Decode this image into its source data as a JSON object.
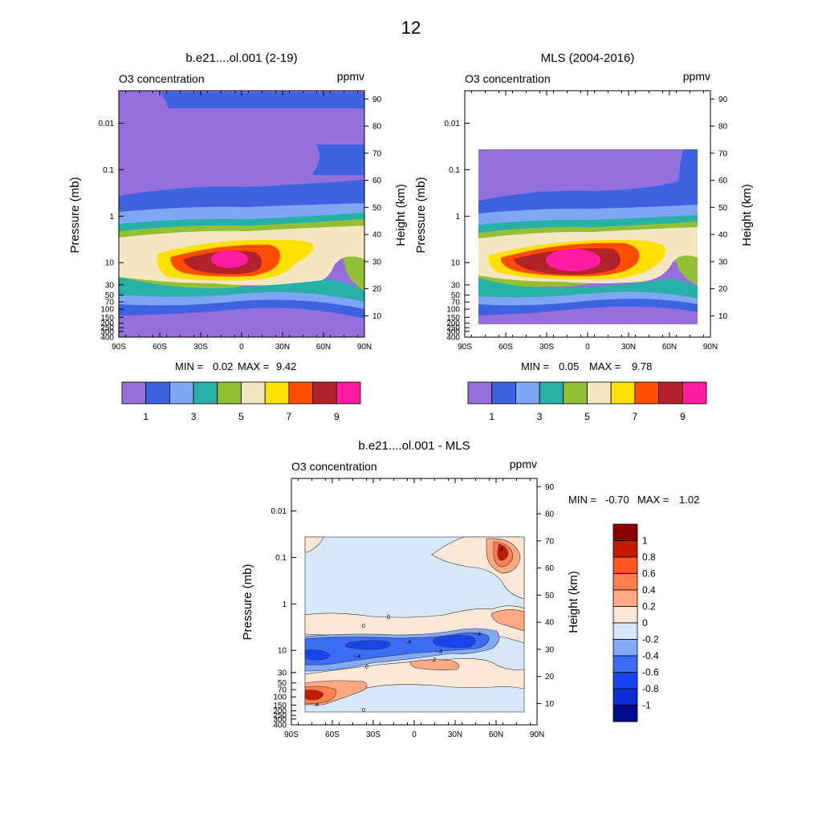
{
  "page_title": "12",
  "chart_data": [
    {
      "type": "heatmap",
      "title": "b.e21....ol.001 (2-19)",
      "left_label": "O3 concentration",
      "right_label": "ppmv",
      "xlabel": "",
      "ylabel": "Pressure (mb)",
      "ylabel_right": "Height (km)",
      "x_ticks": [
        "90S",
        "60S",
        "30S",
        "0",
        "30N",
        "60N",
        "90N"
      ],
      "y_ticks": [
        "0.01",
        "0.1",
        "1",
        "10",
        "30",
        "50",
        "70",
        "100",
        "150",
        "200",
        "250",
        "300",
        "400"
      ],
      "height_ticks": [
        "10",
        "20",
        "30",
        "40",
        "50",
        "60",
        "70",
        "80",
        "90"
      ],
      "xlim": [
        -90,
        90
      ],
      "ylim_pressure_mb": [
        400,
        0.002
      ],
      "stats": {
        "min_label": "MIN =",
        "min": "0.02",
        "max_label": "MAX =",
        "max": "9.42"
      },
      "colorbar": {
        "levels": [
          "1",
          "3",
          "5",
          "7",
          "9"
        ],
        "colors": [
          "#9370db",
          "#3d63e0",
          "#7ea6f5",
          "#27b0a6",
          "#92bf36",
          "#f5e6c2",
          "#ffe000",
          "#ff4d00",
          "#b2222a",
          "#ff1ca0"
        ]
      },
      "peak": {
        "lat": -10,
        "pressure_mb": 10,
        "value": 9.42
      }
    },
    {
      "type": "heatmap",
      "title": "MLS (2004-2016)",
      "left_label": "O3 concentration",
      "right_label": "ppmv",
      "xlabel": "",
      "ylabel": "Pressure (mb)",
      "ylabel_right": "Height (km)",
      "x_ticks": [
        "90S",
        "60S",
        "30S",
        "0",
        "30N",
        "60N",
        "90N"
      ],
      "y_ticks": [
        "0.01",
        "0.1",
        "1",
        "10",
        "30",
        "50",
        "70",
        "100",
        "150",
        "200",
        "250",
        "300",
        "400"
      ],
      "height_ticks": [
        "10",
        "20",
        "30",
        "40",
        "50",
        "60",
        "70",
        "80",
        "90"
      ],
      "xlim": [
        -90,
        90
      ],
      "data_extent": {
        "lat": [
          -82,
          82
        ],
        "pressure_mb": [
          261,
          0.046
        ]
      },
      "stats": {
        "min_label": "MIN =",
        "min": "0.05",
        "max_label": "MAX =",
        "max": "9.78"
      },
      "colorbar": {
        "levels": [
          "1",
          "3",
          "5",
          "7",
          "9"
        ],
        "colors": [
          "#9370db",
          "#3d63e0",
          "#7ea6f5",
          "#27b0a6",
          "#92bf36",
          "#f5e6c2",
          "#ffe000",
          "#ff4d00",
          "#b2222a",
          "#ff1ca0"
        ]
      },
      "peak": {
        "lat": -10,
        "pressure_mb": 10,
        "value": 9.78
      }
    },
    {
      "type": "heatmap",
      "title": "b.e21....ol.001 - MLS",
      "left_label": "O3 concentration",
      "right_label": "ppmv",
      "xlabel": "",
      "ylabel": "Pressure (mb)",
      "ylabel_right": "Height (km)",
      "x_ticks": [
        "90S",
        "60S",
        "30S",
        "0",
        "30N",
        "60N",
        "90N"
      ],
      "y_ticks": [
        "0.01",
        "0.1",
        "1",
        "10",
        "30",
        "50",
        "70",
        "100",
        "150",
        "200",
        "250",
        "300",
        "400"
      ],
      "height_ticks": [
        "10",
        "20",
        "30",
        "40",
        "50",
        "60",
        "70",
        "80",
        "90"
      ],
      "xlim": [
        -90,
        90
      ],
      "data_extent": {
        "lat": [
          -82,
          82
        ],
        "pressure_mb": [
          261,
          0.046
        ]
      },
      "stats": {
        "min_label": "MIN =",
        "min": "-0.70",
        "max_label": "MAX =",
        "max": "1.02"
      },
      "colorbar": {
        "levels": [
          "1",
          "0.8",
          "0.6",
          "0.4",
          "0.2",
          "0",
          "-0.2",
          "-0.4",
          "-0.6",
          "-0.8",
          "-1"
        ],
        "colors": [
          "#8b0000",
          "#c41a00",
          "#ff5522",
          "#ff7f50",
          "#ffa982",
          "#fde8d8",
          "#d6e8f8",
          "#82aaf8",
          "#3d6cf5",
          "#1a44f0",
          "#0a2ad2",
          "#000a90"
        ]
      },
      "contour_labels": [
        "0",
        "0",
        "0",
        "0",
        "-.4",
        "-.4",
        "-.4",
        "-.4",
        "-.2",
        ".4",
        ".4"
      ]
    }
  ]
}
